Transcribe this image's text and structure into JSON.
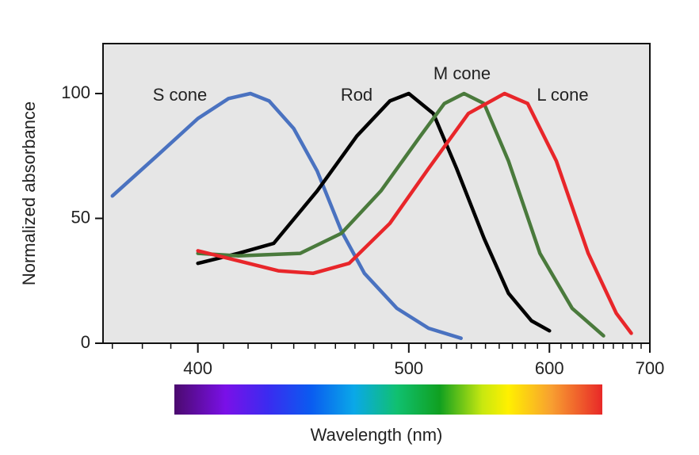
{
  "chart_data": {
    "type": "line",
    "xlabel": "Wavelength (nm)",
    "ylabel": "Normalized absorbance",
    "xscale": "reciprocal",
    "xlim": [
      367,
      700
    ],
    "xticks": [
      400,
      500,
      600,
      700
    ],
    "xminorticks": [
      370,
      380,
      390,
      410,
      420,
      430,
      440,
      450,
      460,
      470,
      480,
      490,
      510,
      520,
      530,
      540,
      550,
      560,
      570,
      580,
      590,
      610,
      620,
      630,
      640,
      650,
      660,
      670,
      680,
      690
    ],
    "ylim": [
      0,
      120
    ],
    "yticks": [
      0,
      50,
      100
    ],
    "series": [
      {
        "name": "S cone",
        "color": "#4a72c0",
        "x": [
          370,
          385,
          400,
          412,
          421,
          429,
          440,
          451,
          463,
          475,
          493,
          512,
          533
        ],
        "values": [
          59,
          75,
          90,
          98,
          100,
          97,
          86,
          69,
          45,
          28,
          14,
          6,
          2
        ]
      },
      {
        "name": "Rod",
        "color": "#000000",
        "x": [
          400,
          416,
          431,
          451,
          471,
          489,
          500,
          515,
          530,
          549,
          567,
          585,
          600
        ],
        "values": [
          32,
          36,
          40,
          61,
          83,
          97,
          100,
          92,
          70,
          42,
          20,
          9,
          5
        ]
      },
      {
        "name": "M cone",
        "color": "#4a7a3c",
        "x": [
          400,
          416,
          443,
          463,
          484,
          507,
          522,
          535,
          549,
          567,
          592,
          620,
          650
        ],
        "values": [
          36,
          35,
          36,
          44,
          61,
          83,
          96,
          100,
          96,
          73,
          36,
          14,
          3
        ]
      },
      {
        "name": "L cone",
        "color": "#e8262a",
        "x": [
          400,
          416,
          433,
          449,
          467,
          489,
          512,
          538,
          564,
          582,
          606,
          635,
          663,
          679
        ],
        "values": [
          37,
          33,
          29,
          28,
          32,
          48,
          70,
          92,
          100,
          96,
          73,
          36,
          12,
          4
        ]
      }
    ]
  }
}
